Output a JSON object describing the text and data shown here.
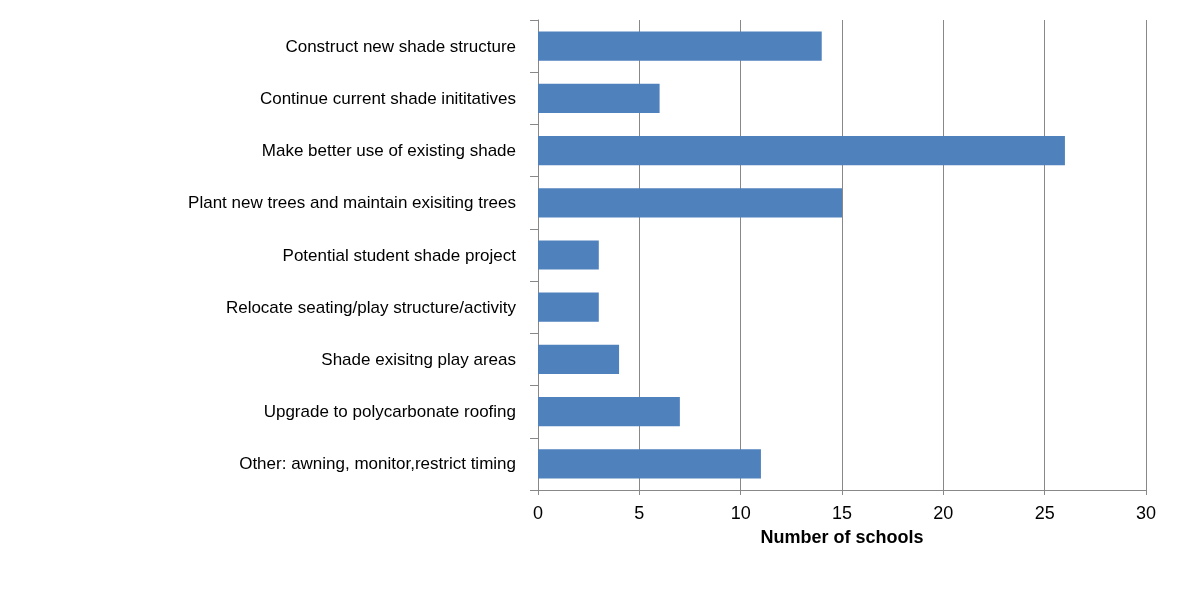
{
  "chart_data": {
    "type": "bar",
    "orientation": "horizontal",
    "xlabel": "Number of schools",
    "categories": [
      "Construct new shade structure",
      "Continue current shade inititatives",
      "Make better use of existing shade",
      "Plant new trees and maintain exisiting trees",
      "Potential student shade project",
      "Relocate seating/play structure/activity",
      "Shade exisitng play areas",
      "Upgrade to polycarbonate roofing",
      "Other: awning, monitor,restrict timing"
    ],
    "values": [
      14,
      6,
      26,
      15,
      3,
      3,
      4,
      7,
      11
    ],
    "color": "#4f81bd",
    "xlim": [
      0,
      30
    ],
    "xticks": [
      0,
      5,
      10,
      15,
      20,
      25,
      30
    ],
    "grid": "x"
  }
}
